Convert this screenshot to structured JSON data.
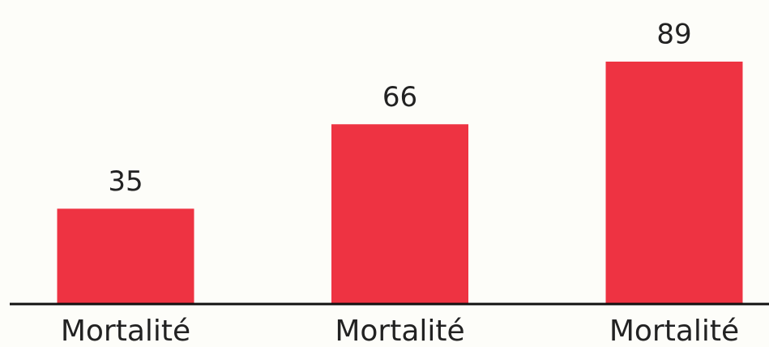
{
  "chart_data": {
    "type": "bar",
    "categories": [
      "Mortalité",
      "Mortalité",
      "Mortalité"
    ],
    "values": [
      35,
      66,
      89
    ],
    "color": "#ee3342"
  }
}
